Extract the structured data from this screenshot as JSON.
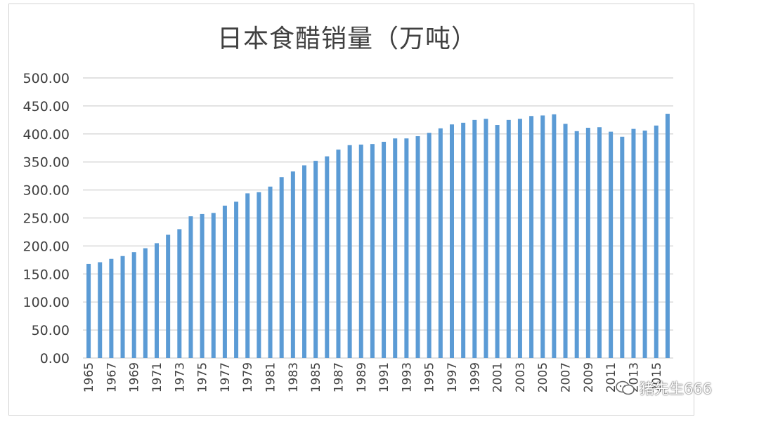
{
  "chart_data": {
    "type": "bar",
    "title": "日本食醋销量（万吨）",
    "xlabel": "",
    "ylabel": "",
    "ylim": [
      0,
      500
    ],
    "yticks": [
      "0.00",
      "50.00",
      "100.00",
      "150.00",
      "200.00",
      "250.00",
      "300.00",
      "350.00",
      "400.00",
      "450.00",
      "500.00"
    ],
    "categories": [
      "1965",
      "1966",
      "1967",
      "1968",
      "1969",
      "1970",
      "1971",
      "1972",
      "1973",
      "1974",
      "1975",
      "1976",
      "1977",
      "1978",
      "1979",
      "1980",
      "1981",
      "1982",
      "1983",
      "1984",
      "1985",
      "1986",
      "1987",
      "1988",
      "1989",
      "1990",
      "1991",
      "1992",
      "1993",
      "1994",
      "1995",
      "1996",
      "1997",
      "1998",
      "1999",
      "2000",
      "2001",
      "2002",
      "2003",
      "2004",
      "2005",
      "2006",
      "2007",
      "2008",
      "2009",
      "2010",
      "2011",
      "2012",
      "2013",
      "2014",
      "2015",
      "2016"
    ],
    "xtick_labels": [
      "1965",
      "1967",
      "1969",
      "1971",
      "1973",
      "1975",
      "1977",
      "1979",
      "1981",
      "1983",
      "1985",
      "1987",
      "1989",
      "1991",
      "1993",
      "1995",
      "1997",
      "1999",
      "2001",
      "2003",
      "2005",
      "2007",
      "2009",
      "2011",
      "2013",
      "2015"
    ],
    "values": [
      168,
      171,
      177,
      182,
      189,
      196,
      205,
      220,
      230,
      253,
      257,
      259,
      272,
      279,
      294,
      296,
      306,
      323,
      333,
      344,
      352,
      360,
      372,
      380,
      381,
      382,
      386,
      392,
      392,
      396,
      402,
      410,
      417,
      420,
      425,
      427,
      416,
      425,
      427,
      432,
      433,
      435,
      418,
      405,
      411,
      412,
      404,
      395,
      409,
      406,
      415,
      436
    ],
    "bar_color": "#5b9bd5",
    "grid": true,
    "legend": "none"
  },
  "watermark": {
    "text": "猪先生666"
  }
}
